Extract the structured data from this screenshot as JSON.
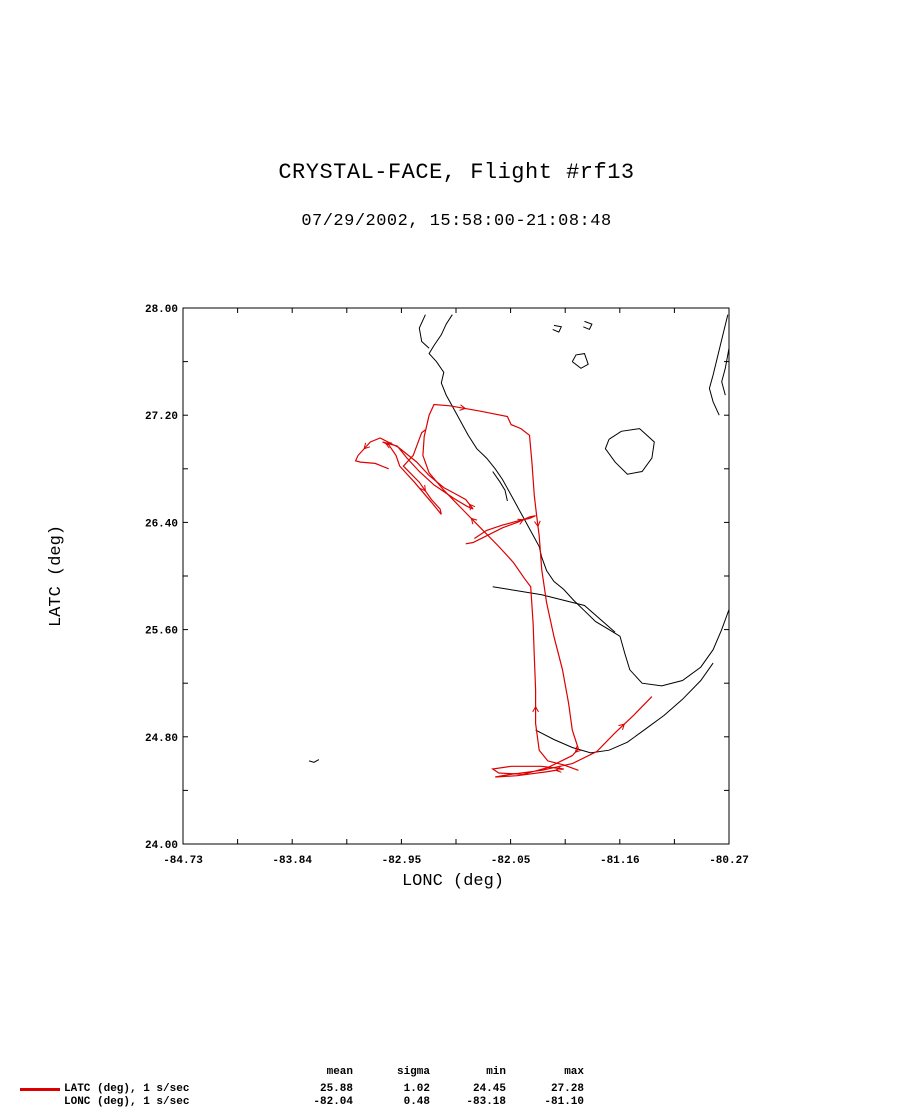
{
  "title": "CRYSTAL-FACE, Flight #rf13",
  "subtitle": "07/29/2002, 15:58:00-21:08:48",
  "chart_data": {
    "type": "line",
    "xlabel": "LONC (deg)",
    "ylabel": "LATC (deg)",
    "xlim": [
      -84.73,
      -80.27
    ],
    "ylim": [
      24.0,
      28.0
    ],
    "xticks": [
      "-84.73",
      "-83.84",
      "-82.95",
      "-82.05",
      "-81.16",
      "-80.27"
    ],
    "yticks": [
      "24.00",
      "24.80",
      "25.60",
      "26.40",
      "27.20",
      "28.00"
    ],
    "track_color": "#dd0000",
    "coast_color": "#000000",
    "series": [
      {
        "values": [
          [
            -81.5,
            24.55
          ],
          [
            -81.62,
            24.59
          ],
          [
            -81.75,
            24.62
          ],
          [
            -81.82,
            24.7
          ],
          [
            -81.85,
            24.9
          ],
          [
            -81.85,
            25.15
          ],
          [
            -81.86,
            25.4
          ],
          [
            -81.87,
            25.65
          ],
          [
            -81.89,
            25.92
          ],
          [
            -81.94,
            25.98
          ],
          [
            -82.03,
            26.1
          ],
          [
            -82.15,
            26.22
          ],
          [
            -82.3,
            26.36
          ],
          [
            -82.45,
            26.5
          ],
          [
            -82.6,
            26.64
          ],
          [
            -82.72,
            26.77
          ],
          [
            -82.77,
            26.9
          ],
          [
            -82.76,
            27.04
          ],
          [
            -82.72,
            27.2
          ],
          [
            -82.68,
            27.28
          ],
          [
            -82.55,
            27.27
          ],
          [
            -82.3,
            27.23
          ],
          [
            -82.08,
            27.19
          ],
          [
            -82.05,
            27.13
          ],
          [
            -81.97,
            27.1
          ],
          [
            -81.9,
            27.05
          ],
          [
            -81.88,
            26.85
          ],
          [
            -81.86,
            26.6
          ],
          [
            -81.84,
            26.44
          ],
          [
            -81.82,
            26.3
          ],
          [
            -81.8,
            26.05
          ],
          [
            -81.76,
            25.8
          ],
          [
            -81.7,
            25.55
          ],
          [
            -81.63,
            25.3
          ],
          [
            -81.58,
            25.05
          ],
          [
            -81.55,
            24.85
          ],
          [
            -81.5,
            24.71
          ],
          [
            -81.55,
            24.66
          ],
          [
            -81.75,
            24.57
          ],
          [
            -81.95,
            24.52
          ],
          [
            -82.15,
            24.53
          ],
          [
            -82.2,
            24.56
          ],
          [
            -82.05,
            24.58
          ],
          [
            -81.8,
            24.58
          ],
          [
            -81.62,
            24.56
          ],
          [
            -81.75,
            24.54
          ],
          [
            -82.0,
            24.51
          ],
          [
            -82.18,
            24.5
          ],
          [
            -82.05,
            24.52
          ],
          [
            -81.8,
            24.55
          ],
          [
            -81.55,
            24.6
          ],
          [
            -81.35,
            24.69
          ],
          [
            -81.2,
            24.83
          ],
          [
            -81.05,
            24.96
          ],
          [
            -80.9,
            25.1
          ]
        ]
      },
      {
        "values": [
          [
            -82.75,
            27.09
          ],
          [
            -82.78,
            27.07
          ],
          [
            -82.85,
            26.9
          ],
          [
            -82.93,
            26.82
          ],
          [
            -82.8,
            26.7
          ],
          [
            -82.7,
            26.57
          ],
          [
            -82.63,
            26.5
          ],
          [
            -82.62,
            26.46
          ],
          [
            -82.7,
            26.55
          ],
          [
            -82.84,
            26.7
          ],
          [
            -82.96,
            26.82
          ],
          [
            -82.99,
            26.9
          ],
          [
            -83.05,
            26.98
          ],
          [
            -83.1,
            27.0
          ],
          [
            -82.98,
            26.97
          ],
          [
            -82.9,
            26.88
          ],
          [
            -82.8,
            26.78
          ],
          [
            -82.68,
            26.68
          ],
          [
            -82.52,
            26.58
          ],
          [
            -82.41,
            26.52
          ],
          [
            -82.36,
            26.5
          ],
          [
            -82.42,
            26.57
          ],
          [
            -82.52,
            26.62
          ],
          [
            -82.6,
            26.66
          ],
          [
            -82.72,
            26.75
          ],
          [
            -82.82,
            26.85
          ],
          [
            -82.97,
            26.96
          ],
          [
            -83.12,
            27.03
          ],
          [
            -83.2,
            27.0
          ],
          [
            -83.3,
            26.9
          ],
          [
            -83.32,
            26.86
          ],
          [
            -83.28,
            26.85
          ],
          [
            -83.16,
            26.84
          ],
          [
            -83.05,
            26.8
          ]
        ]
      },
      {
        "values": [
          [
            -82.42,
            26.24
          ],
          [
            -82.36,
            26.25
          ],
          [
            -82.25,
            26.3
          ],
          [
            -82.12,
            26.36
          ],
          [
            -82.0,
            26.4
          ],
          [
            -81.9,
            26.44
          ],
          [
            -81.85,
            26.45
          ],
          [
            -81.9,
            26.43
          ],
          [
            -82.0,
            26.41
          ],
          [
            -82.12,
            26.38
          ],
          [
            -82.25,
            26.34
          ],
          [
            -82.35,
            26.28
          ]
        ]
      }
    ]
  },
  "stats": {
    "headers": [
      "mean",
      "sigma",
      "min",
      "max"
    ],
    "rows": [
      {
        "label": "LATC (deg), 1 s/sec",
        "values": [
          "25.88",
          "1.02",
          "24.45",
          "27.28"
        ]
      },
      {
        "label": "LONC (deg), 1 s/sec",
        "values": [
          "-82.04",
          "0.48",
          "-83.18",
          "-81.10"
        ]
      }
    ]
  }
}
